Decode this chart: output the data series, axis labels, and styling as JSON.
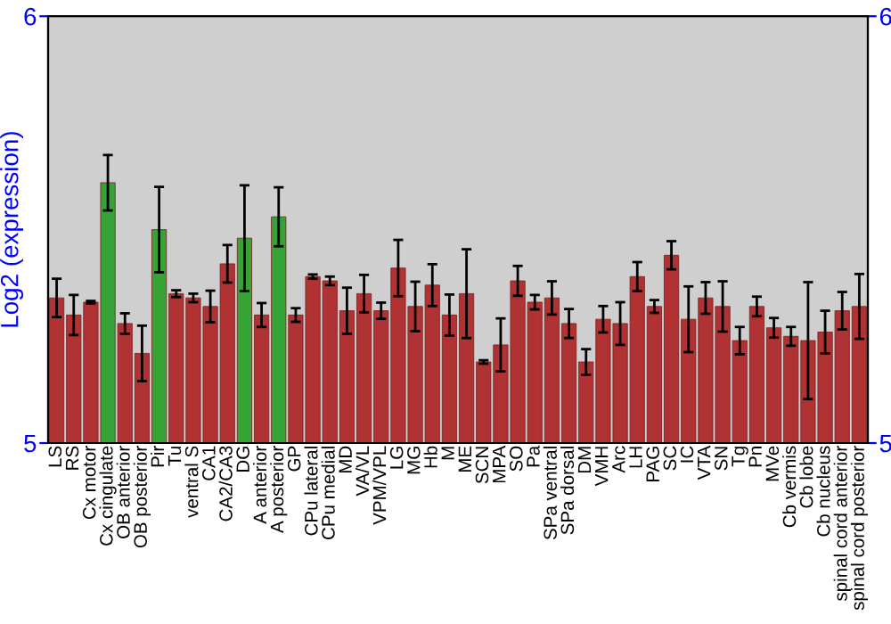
{
  "chart_data": {
    "type": "bar",
    "ylabel": "Log2 (expression)",
    "categories": [
      "LS",
      "RS",
      "Cx motor",
      "Cx cingulate",
      "OB anterior",
      "OB posterior",
      "Pir",
      "Tu",
      "ventral S",
      "CA1",
      "CA2/CA3",
      "DG",
      "A anterior",
      "A posterior",
      "GP",
      "CPu lateral",
      "CPu medial",
      "MD",
      "VA/VL",
      "VPM/VPL",
      "LG",
      "MG",
      "Hb",
      "M",
      "ME",
      "SCN",
      "MPA",
      "SO",
      "Pa",
      "SPa ventral",
      "SPa dorsal",
      "DM",
      "VMH",
      "Arc",
      "LH",
      "PAG",
      "SC",
      "IC",
      "VTA",
      "SN",
      "Tg",
      "Pn",
      "MVe",
      "Cb vermis",
      "Cb lobe",
      "Cb nucleus",
      "spinal cord anterior",
      "spinal cord posterior"
    ],
    "values": [
      5.34,
      5.3,
      5.33,
      5.61,
      5.28,
      5.21,
      5.5,
      5.35,
      5.34,
      5.32,
      5.42,
      5.48,
      5.3,
      5.53,
      5.3,
      5.39,
      5.38,
      5.31,
      5.35,
      5.31,
      5.41,
      5.32,
      5.37,
      5.3,
      5.35,
      5.19,
      5.23,
      5.38,
      5.33,
      5.34,
      5.28,
      5.19,
      5.29,
      5.28,
      5.39,
      5.32,
      5.44,
      5.29,
      5.34,
      5.32,
      5.24,
      5.32,
      5.27,
      5.25,
      5.24,
      5.26,
      5.31,
      5.32
    ],
    "errors": [
      0.045,
      0.047,
      0.003,
      0.065,
      0.024,
      0.065,
      0.1,
      0.008,
      0.01,
      0.037,
      0.044,
      0.124,
      0.028,
      0.069,
      0.016,
      0.005,
      0.01,
      0.054,
      0.044,
      0.019,
      0.066,
      0.058,
      0.049,
      0.048,
      0.104,
      0.004,
      0.062,
      0.035,
      0.017,
      0.039,
      0.034,
      0.03,
      0.031,
      0.05,
      0.034,
      0.015,
      0.033,
      0.077,
      0.037,
      0.059,
      0.032,
      0.023,
      0.023,
      0.022,
      0.137,
      0.05,
      0.044,
      0.076
    ],
    "colors": [
      "#b03232",
      "#b03232",
      "#b03232",
      "#36a336",
      "#b03232",
      "#b03232",
      "#36a336",
      "#b03232",
      "#b03232",
      "#b03232",
      "#b03232",
      "#36a336",
      "#b03232",
      "#36a336",
      "#b03232",
      "#b03232",
      "#b03232",
      "#b03232",
      "#b03232",
      "#b03232",
      "#b03232",
      "#b03232",
      "#b03232",
      "#b03232",
      "#b03232",
      "#b03232",
      "#b03232",
      "#b03232",
      "#b03232",
      "#b03232",
      "#b03232",
      "#b03232",
      "#b03232",
      "#b03232",
      "#b03232",
      "#b03232",
      "#b03232",
      "#b03232",
      "#b03232",
      "#b03232",
      "#b03232",
      "#b03232",
      "#b03232",
      "#b03232",
      "#b03232",
      "#b03232",
      "#b03232",
      "#b03232"
    ],
    "ylim": [
      5,
      6
    ],
    "yticks": [
      5,
      6
    ],
    "y2lim": [
      5,
      6
    ],
    "y2ticks": [
      5,
      6
    ],
    "grid": false,
    "legend": false
  }
}
